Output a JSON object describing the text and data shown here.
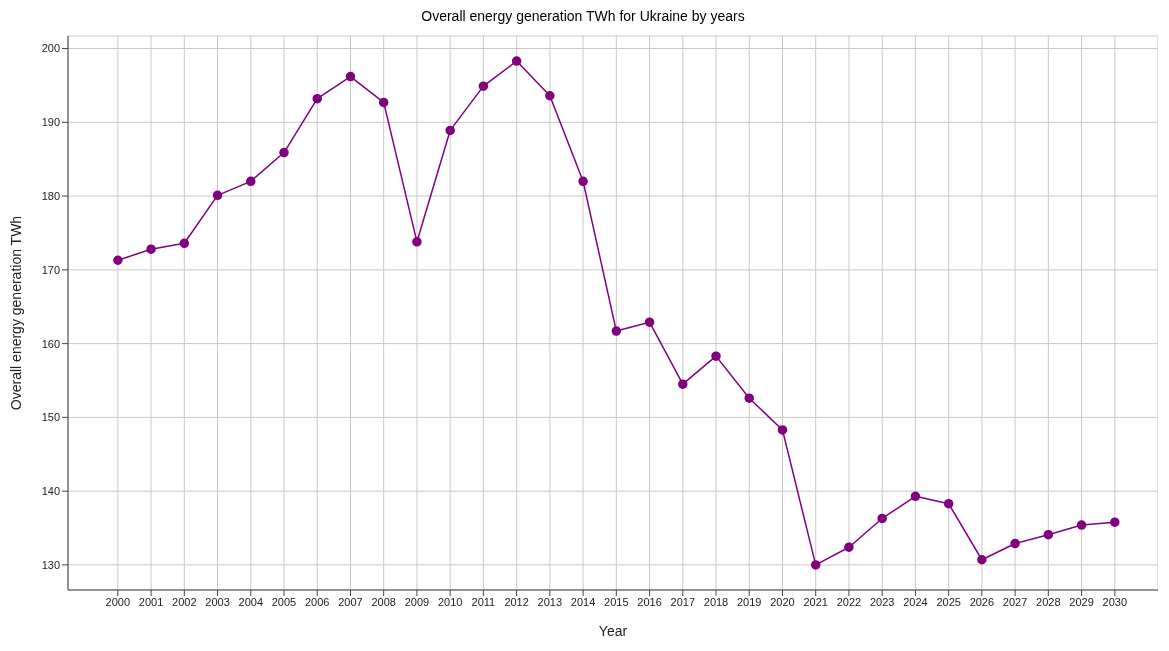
{
  "chart_data": {
    "type": "line",
    "title": "Overall energy generation TWh for Ukraine by years",
    "xlabel": "Year",
    "ylabel": "Overall energy generation TWh",
    "x": [
      2000,
      2001,
      2002,
      2003,
      2004,
      2005,
      2006,
      2007,
      2008,
      2009,
      2010,
      2011,
      2012,
      2013,
      2014,
      2015,
      2016,
      2017,
      2018,
      2019,
      2020,
      2021,
      2022,
      2023,
      2024,
      2025,
      2026,
      2027,
      2028,
      2029,
      2030
    ],
    "series": [
      {
        "color": "#800080",
        "values": [
          171.3,
          172.8,
          173.6,
          180.1,
          182.0,
          185.9,
          193.2,
          196.2,
          192.7,
          173.8,
          188.9,
          194.9,
          198.3,
          193.6,
          182.0,
          161.7,
          162.9,
          154.5,
          158.3,
          152.6,
          148.3,
          130.0,
          132.4,
          136.3,
          139.3,
          138.3,
          130.7,
          132.9,
          134.1,
          135.4,
          135.8
        ]
      }
    ],
    "xlim": [
      1998.5,
      2031.3
    ],
    "xticks": [
      2000,
      2001,
      2002,
      2003,
      2004,
      2005,
      2006,
      2007,
      2008,
      2009,
      2010,
      2011,
      2012,
      2013,
      2014,
      2015,
      2016,
      2017,
      2018,
      2019,
      2020,
      2021,
      2022,
      2023,
      2024,
      2025,
      2026,
      2027,
      2028,
      2029,
      2030
    ],
    "ylim": [
      126.6,
      201.7
    ],
    "yticks": [
      130,
      140,
      150,
      160,
      170,
      180,
      190,
      200
    ],
    "grid": true,
    "marker": "circle",
    "line_style": "solid"
  }
}
